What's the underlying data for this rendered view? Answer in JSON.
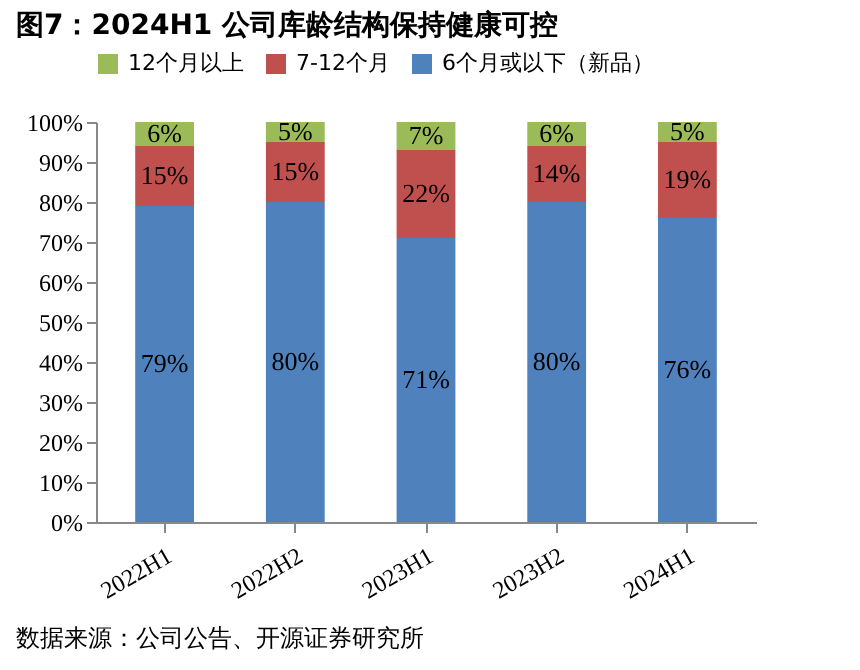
{
  "chart_data": {
    "type": "bar",
    "stacked": true,
    "title": "图7：2024H1 公司库龄结构保持健康可控",
    "categories": [
      "2022H1",
      "2022H2",
      "2023H1",
      "2023H2",
      "2024H1"
    ],
    "series": [
      {
        "name": "6个月或以下（新品）",
        "color": "#4f81bd",
        "values": [
          79,
          80,
          71,
          80,
          76
        ],
        "value_labels": [
          "79%",
          "80%",
          "71%",
          "80%",
          "76%"
        ]
      },
      {
        "name": "7-12个月",
        "color": "#c0504d",
        "values": [
          15,
          15,
          22,
          14,
          19
        ],
        "value_labels": [
          "15%",
          "15%",
          "22%",
          "14%",
          "19%"
        ]
      },
      {
        "name": "12个月以上",
        "color": "#9bbb59",
        "values": [
          6,
          5,
          7,
          6,
          5
        ],
        "value_labels": [
          "6%",
          "5%",
          "7%",
          "6%",
          "5%"
        ]
      }
    ],
    "ylim": [
      0,
      100
    ],
    "yticks": [
      {
        "value": 0,
        "label": "0%"
      },
      {
        "value": 10,
        "label": "10%"
      },
      {
        "value": 20,
        "label": "20%"
      },
      {
        "value": 30,
        "label": "30%"
      },
      {
        "value": 40,
        "label": "40%"
      },
      {
        "value": 50,
        "label": "50%"
      },
      {
        "value": 60,
        "label": "60%"
      },
      {
        "value": 70,
        "label": "70%"
      },
      {
        "value": 80,
        "label": "80%"
      },
      {
        "value": 90,
        "label": "90%"
      },
      {
        "value": 100,
        "label": "100%"
      }
    ],
    "legend": "top",
    "grid": false,
    "annotations": [
      "数据来源：公司公告、开源证券研究所"
    ]
  }
}
